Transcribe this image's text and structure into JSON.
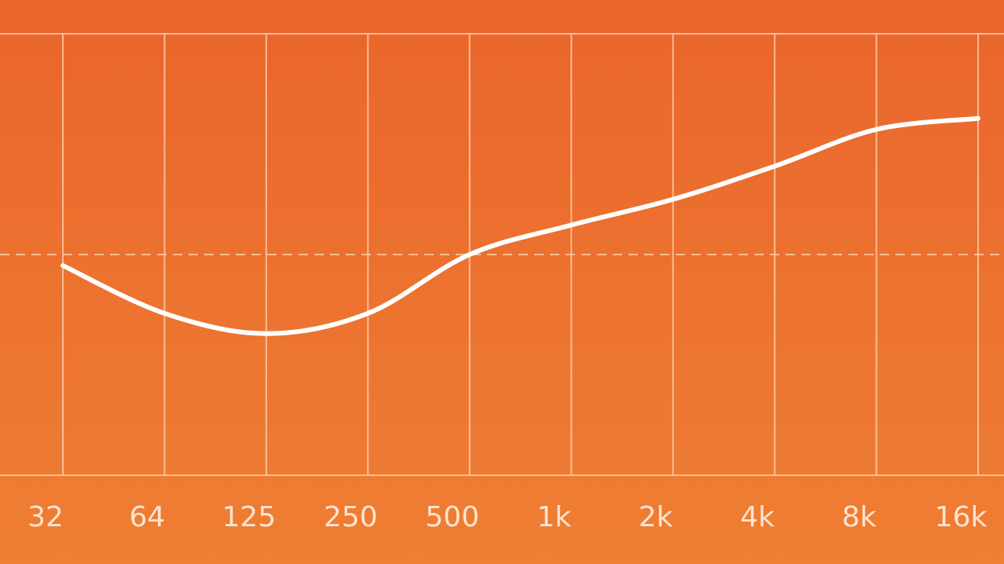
{
  "chart_data": {
    "type": "line",
    "categories": [
      "32",
      "64",
      "125",
      "250",
      "500",
      "1k",
      "2k",
      "4k",
      "8k",
      "16k"
    ],
    "values": [
      -0.6,
      -3.2,
      -4.3,
      -3.2,
      0,
      1.6,
      3.0,
      4.8,
      6.8,
      7.4
    ],
    "color": "#ffffff",
    "ylim": [
      -12,
      12
    ],
    "grid": true
  }
}
